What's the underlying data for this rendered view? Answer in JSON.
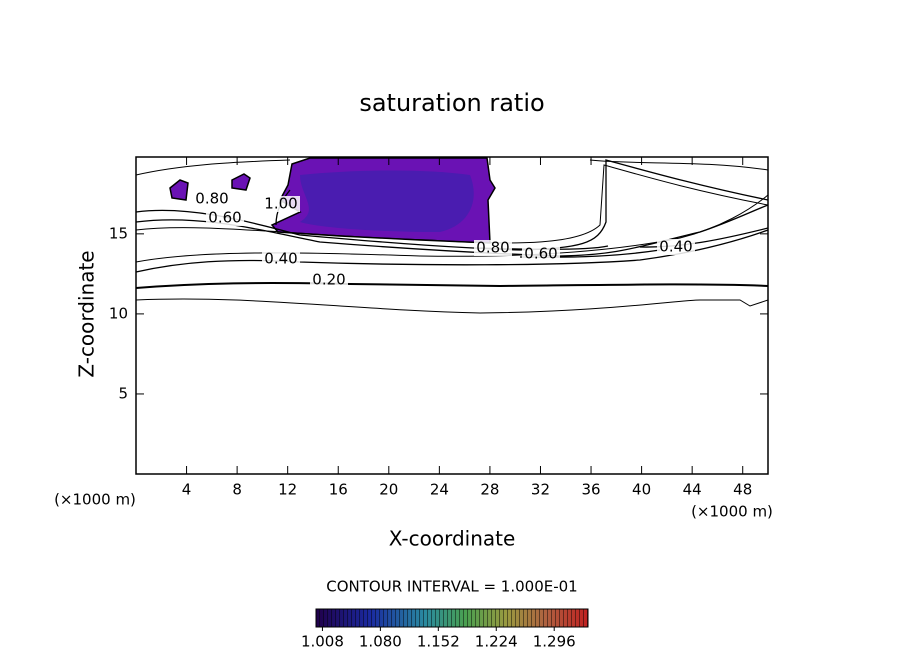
{
  "chart_data": {
    "type": "contour",
    "title": "saturation ratio",
    "xlabel": "X-coordinate",
    "ylabel": "Z-coordinate",
    "xunit": "(×1000 m)",
    "yunit": "(×1000 m)",
    "xlim": [
      0,
      50
    ],
    "ylim": [
      0,
      19.8
    ],
    "xticks": [
      4,
      8,
      12,
      16,
      20,
      24,
      28,
      32,
      36,
      40,
      44,
      48
    ],
    "yticks": [
      5,
      10,
      15
    ],
    "contour_labels": {
      "values": [
        0.8,
        0.6,
        1.0,
        0.4,
        0.2,
        0.8,
        0.6,
        0.4
      ],
      "value_labels": [
        "0.80",
        "0.60",
        "1.00",
        "0.40",
        "0.20",
        "0.80",
        "0.60",
        "0.40"
      ]
    },
    "colorbar": {
      "title": "CONTOUR INTERVAL = 1.000E-01",
      "lim": [
        1.0,
        1.338
      ],
      "ticks": [
        1.008,
        {
          "value": 1.08,
          "label": "1.080"
        },
        1.152,
        1.224,
        1.296
      ]
    }
  }
}
